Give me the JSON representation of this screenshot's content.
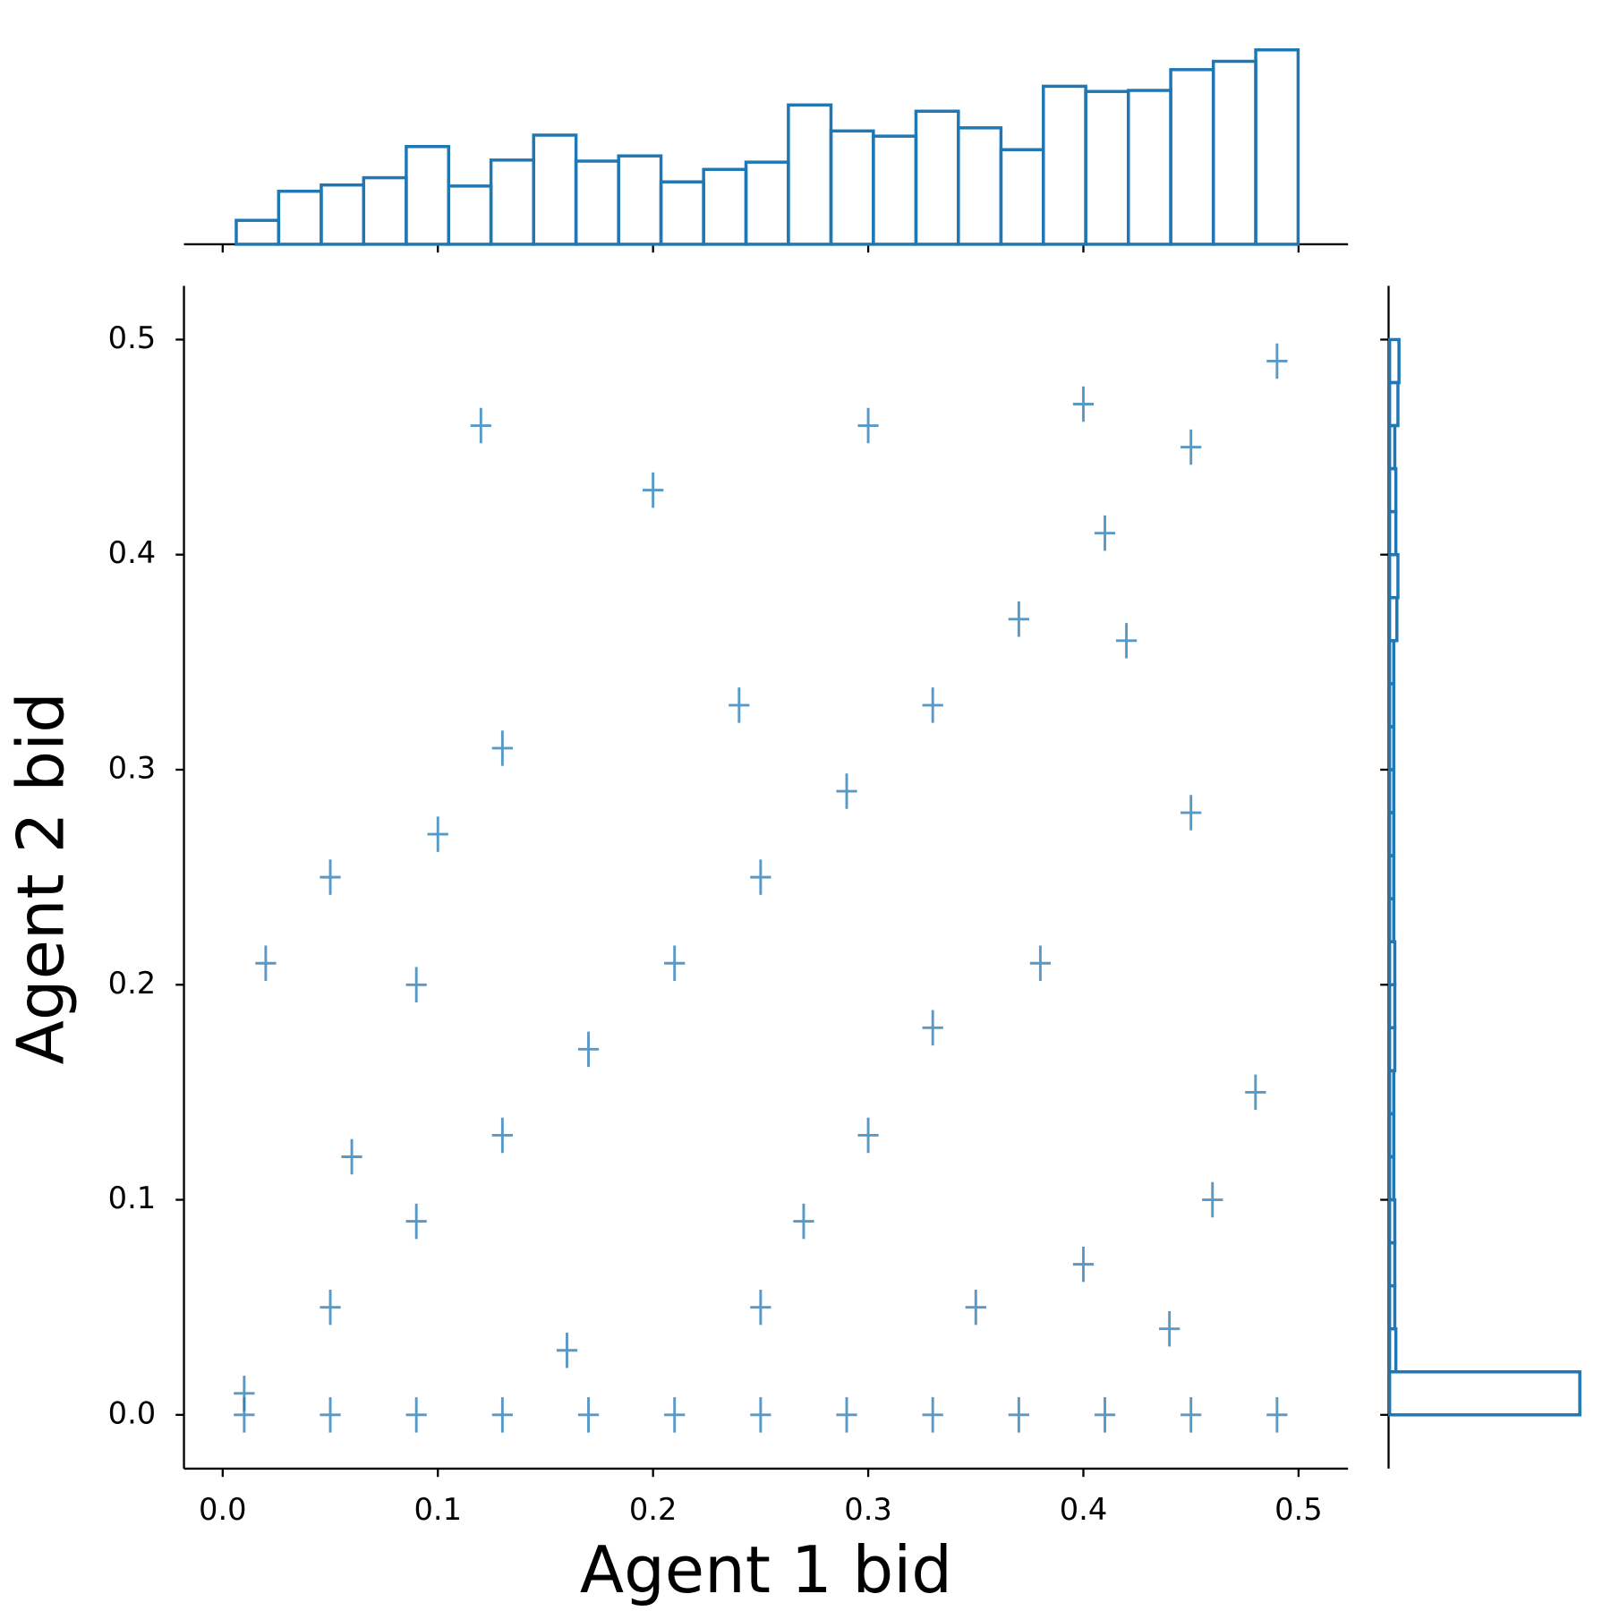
{
  "chart_data": [
    {
      "type": "scatter",
      "xlabel": "Agent 1 bid",
      "ylabel": "Agent 2 bid",
      "color": "#1f77b4",
      "marker": "+",
      "xlim": [
        -0.018,
        0.523
      ],
      "ylim": [
        -0.025,
        0.525
      ],
      "xticks": [
        {
          "value": 0,
          "label": "0.0"
        },
        0.1,
        0.2,
        0.3,
        0.4,
        0.5
      ],
      "yticks": [
        {
          "value": 0,
          "label": "0.0"
        },
        0.1,
        0.2,
        0.3,
        0.4,
        0.5
      ],
      "x": [
        0.01,
        0.05,
        0.09,
        0.13,
        0.17,
        0.21,
        0.25,
        0.29,
        0.33,
        0.37,
        0.41,
        0.45,
        0.49,
        0.01,
        0.05,
        0.09,
        0.13,
        0.17,
        0.21,
        0.25,
        0.29,
        0.33,
        0.37,
        0.41,
        0.45,
        0.49,
        0.1,
        0.05,
        0.02,
        0.09,
        0.13,
        0.24,
        0.3,
        0.42,
        0.45,
        0.38,
        0.3,
        0.35,
        0.44,
        0.48,
        0.25,
        0.16,
        0.2,
        0.4,
        0.12,
        0.33,
        0.27,
        0.46,
        0.06,
        0.4
      ],
      "y": [
        0.01,
        0.05,
        0.09,
        0.13,
        0.17,
        0.21,
        0.25,
        0.29,
        0.33,
        0.37,
        0.41,
        0.45,
        0.49,
        0,
        0,
        0,
        0,
        0,
        0,
        0,
        0,
        0,
        0,
        0,
        0,
        0,
        0.27,
        0.25,
        0.21,
        0.2,
        0.31,
        0.33,
        0.46,
        0.36,
        0.28,
        0.21,
        0.13,
        0.05,
        0.04,
        0.15,
        0.05,
        0.03,
        0.43,
        0.47,
        0.46,
        0.18,
        0.09,
        0.1,
        0.12,
        0.07
      ]
    },
    {
      "type": "histogram",
      "orientation": "vertical",
      "color": "#1f77b4",
      "bins": [
        0.0063,
        0.026,
        0.0458,
        0.0655,
        0.0853,
        0.105,
        0.1247,
        0.1445,
        0.1642,
        0.184,
        0.2037,
        0.2235,
        0.2432,
        0.2629,
        0.2827,
        0.3024,
        0.3222,
        0.3419,
        0.3617,
        0.3814,
        0.4011,
        0.4209,
        0.4406,
        0.4604,
        0.4801,
        0.4998
      ],
      "values": [
        23,
        51,
        57,
        64,
        94,
        56,
        81,
        105,
        80,
        85,
        60,
        72,
        79,
        134,
        109,
        104,
        128,
        112,
        91,
        152,
        147,
        148,
        168,
        176,
        187
      ]
    },
    {
      "type": "histogram",
      "orientation": "horizontal",
      "color": "#1f77b4",
      "bins": [
        0,
        0.02,
        0.04,
        0.06,
        0.08,
        0.1,
        0.12,
        0.14,
        0.16,
        0.18,
        0.2,
        0.22,
        0.24,
        0.26,
        0.28,
        0.3,
        0.32,
        0.34,
        0.36,
        0.38,
        0.4,
        0.42,
        0.44,
        0.46,
        0.48,
        0.5
      ],
      "values": [
        183,
        6,
        5,
        5,
        5,
        4,
        4,
        4,
        5,
        5,
        5,
        4,
        4,
        4,
        4,
        4,
        4,
        4,
        7,
        8,
        6,
        6,
        5,
        8,
        9
      ]
    }
  ]
}
